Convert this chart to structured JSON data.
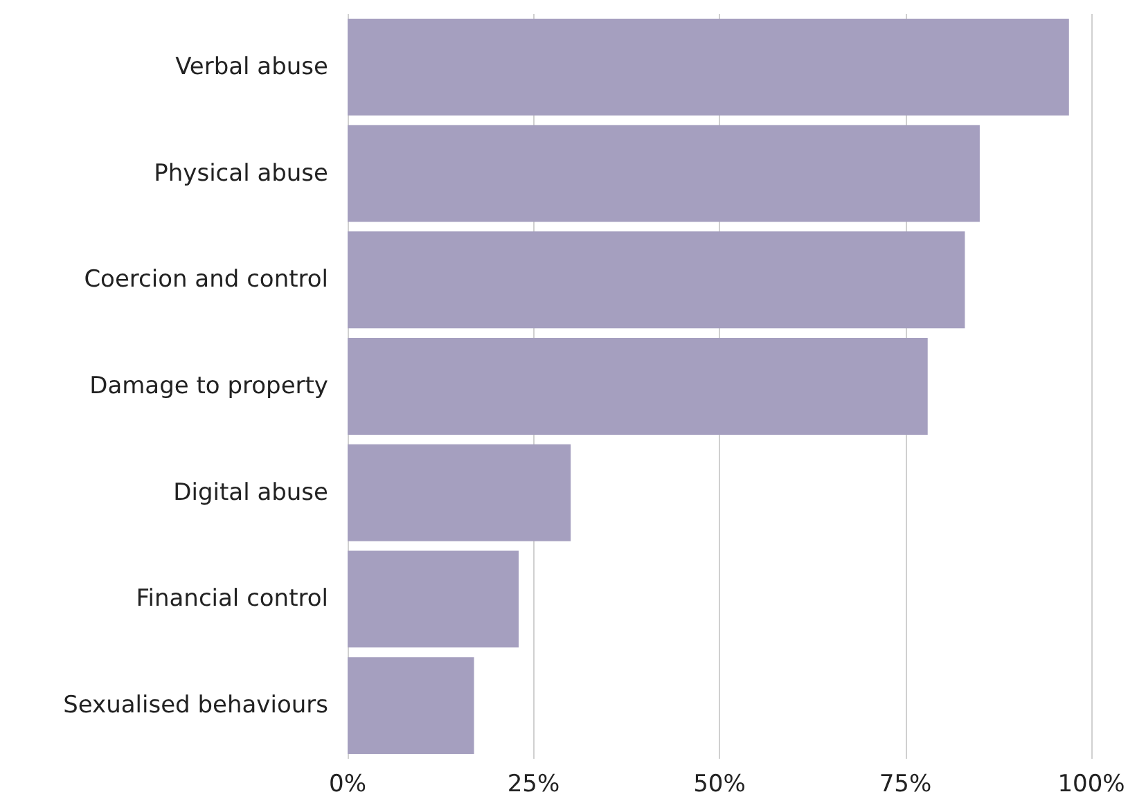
{
  "chart_data": {
    "type": "bar",
    "orientation": "horizontal",
    "categories": [
      "Verbal abuse",
      "Physical abuse",
      "Coercion and control",
      "Damage to property",
      "Digital abuse",
      "Financial control",
      "Sexualised behaviours"
    ],
    "values": [
      97,
      85,
      83,
      78,
      30,
      23,
      17
    ],
    "color": "#a59fbf",
    "xlim": [
      0,
      100
    ],
    "xticks": [
      {
        "value": 0,
        "label": "0%"
      },
      {
        "value": 25,
        "label": "25%"
      },
      {
        "value": 50,
        "label": "50%"
      },
      {
        "value": 75,
        "label": "75%"
      },
      {
        "value": 100,
        "label": "100%"
      }
    ],
    "grid": "x"
  }
}
